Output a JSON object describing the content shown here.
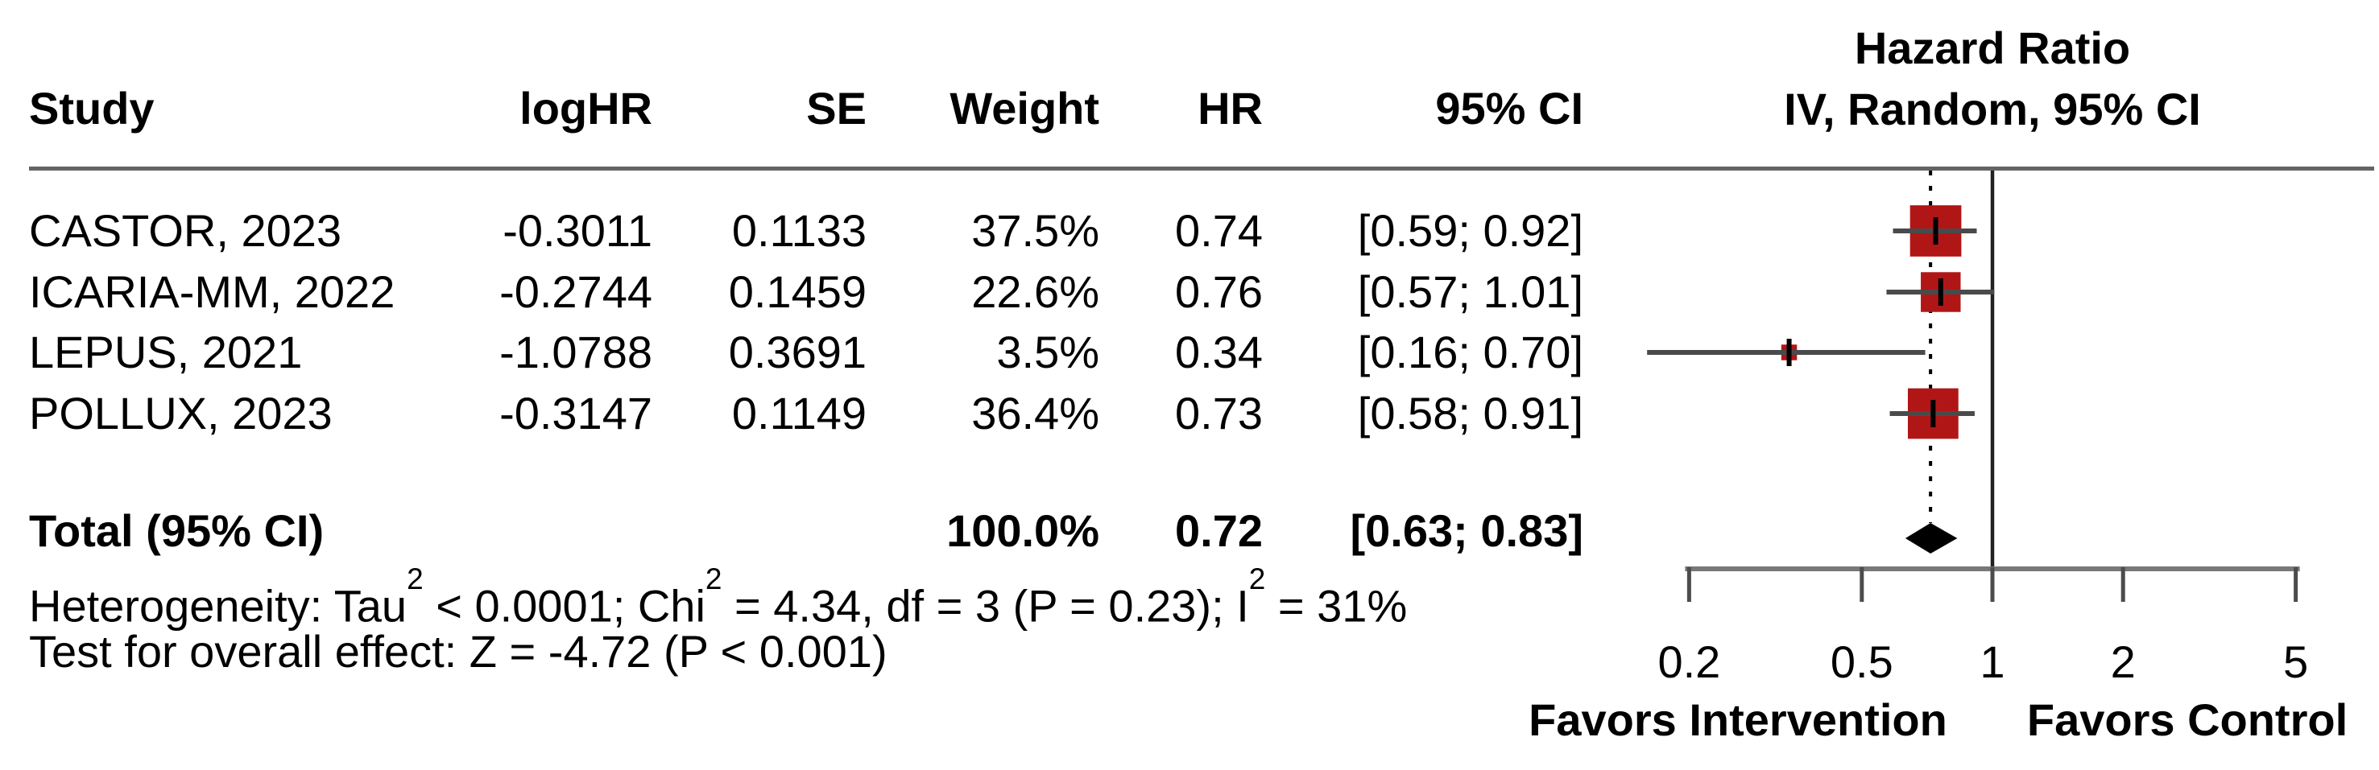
{
  "header": {
    "plot_title_line1": "Hazard Ratio",
    "plot_title_line2": "IV, Random, 95% CI",
    "columns": {
      "study": "Study",
      "loghr": "logHR",
      "se": "SE",
      "weight": "Weight",
      "hr": "HR",
      "ci": "95% CI"
    }
  },
  "chart_data": {
    "type": "forest",
    "x_scale": "log",
    "axis_ticks": [
      "0.2",
      "0.5",
      "1",
      "2",
      "5"
    ],
    "ref_line": 1,
    "overall_value": 0.72,
    "xlim": [
      0.2,
      5
    ],
    "colors": {
      "square": "#b11616",
      "diamond": "#000000",
      "ci_line": "#4a4a4a",
      "cross": "#000000",
      "axis_line": "#787878",
      "axis_tick": "#4c4c4c",
      "ref_line": "#212121",
      "dashed_line": "#000000",
      "divider": "#646464"
    },
    "studies": [
      {
        "study": "CASTOR, 2023",
        "logHR": "-0.3011",
        "SE": "0.1133",
        "weight": "37.5%",
        "weight_value": 37.5,
        "HR": "0.74",
        "hr_value": 0.74,
        "ci": "[0.59; 0.92]",
        "ci_low": 0.59,
        "ci_high": 0.92
      },
      {
        "study": "ICARIA-MM, 2022",
        "logHR": "-0.2744",
        "SE": "0.1459",
        "weight": "22.6%",
        "weight_value": 22.6,
        "HR": "0.76",
        "hr_value": 0.76,
        "ci": "[0.57; 1.01]",
        "ci_low": 0.57,
        "ci_high": 1.01
      },
      {
        "study": "LEPUS, 2021",
        "logHR": "-1.0788",
        "SE": "0.3691",
        "weight": "3.5%",
        "weight_value": 3.5,
        "HR": "0.34",
        "hr_value": 0.34,
        "ci": "[0.16; 0.70]",
        "ci_low": 0.16,
        "ci_high": 0.7
      },
      {
        "study": "POLLUX, 2023",
        "logHR": "-0.3147",
        "SE": "0.1149",
        "weight": "36.4%",
        "weight_value": 36.4,
        "HR": "0.73",
        "hr_value": 0.73,
        "ci": "[0.58; 0.91]",
        "ci_low": 0.58,
        "ci_high": 0.91
      }
    ],
    "total": {
      "label": "Total (95% CI)",
      "weight": "100.0%",
      "weight_value": 100.0,
      "HR": "0.72",
      "hr_value": 0.72,
      "ci": "[0.63; 0.83]",
      "ci_low": 0.63,
      "ci_high": 0.83
    }
  },
  "footer": {
    "heterogeneity": {
      "t1": "Heterogeneity: Tau",
      "s1": "2",
      "t2": " < 0.0001; Chi",
      "s2": "2",
      "t3": " = 4.34, df = 3 (P = 0.23); I",
      "s3": "2",
      "t4": " = 31%"
    },
    "overall_test": "Test for overall effect: Z = -4.72 (P < 0.001)",
    "favors_left": "Favors Intervention",
    "favors_right": "Favors Control"
  }
}
